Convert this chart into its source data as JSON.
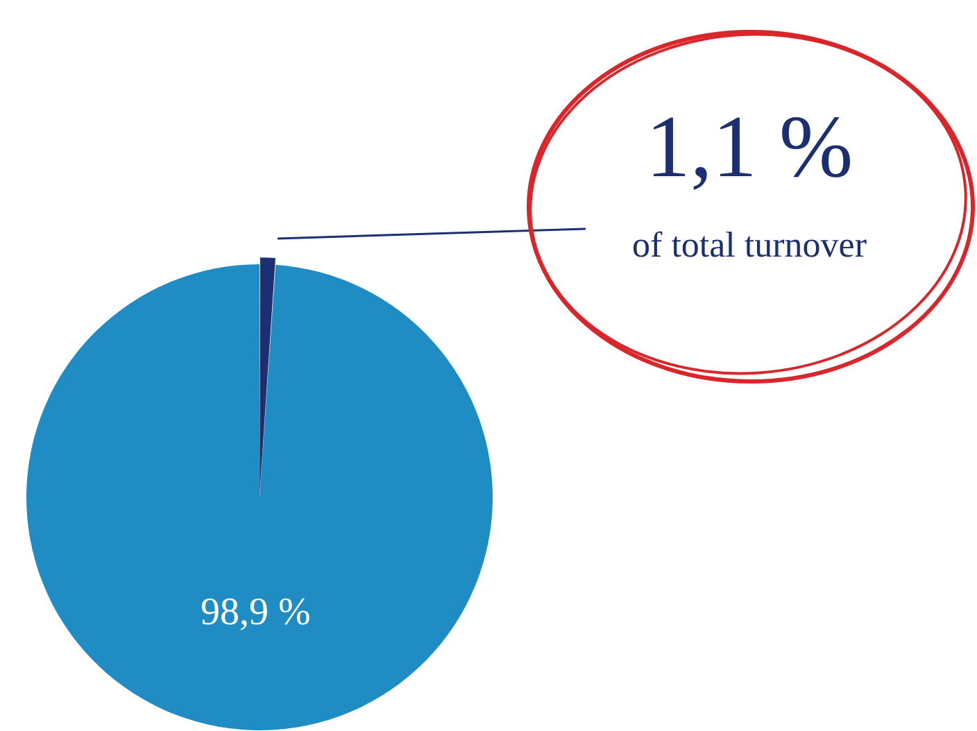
{
  "chart_data": {
    "type": "pie",
    "categories": [
      null,
      null
    ],
    "values": [
      98.9,
      1.1
    ],
    "colors": [
      "#1f8cc4",
      "#1b2f72"
    ],
    "value_labels": [
      "98,9 %",
      "1,1 %"
    ],
    "annotations": [
      "of total turnover"
    ]
  }
}
